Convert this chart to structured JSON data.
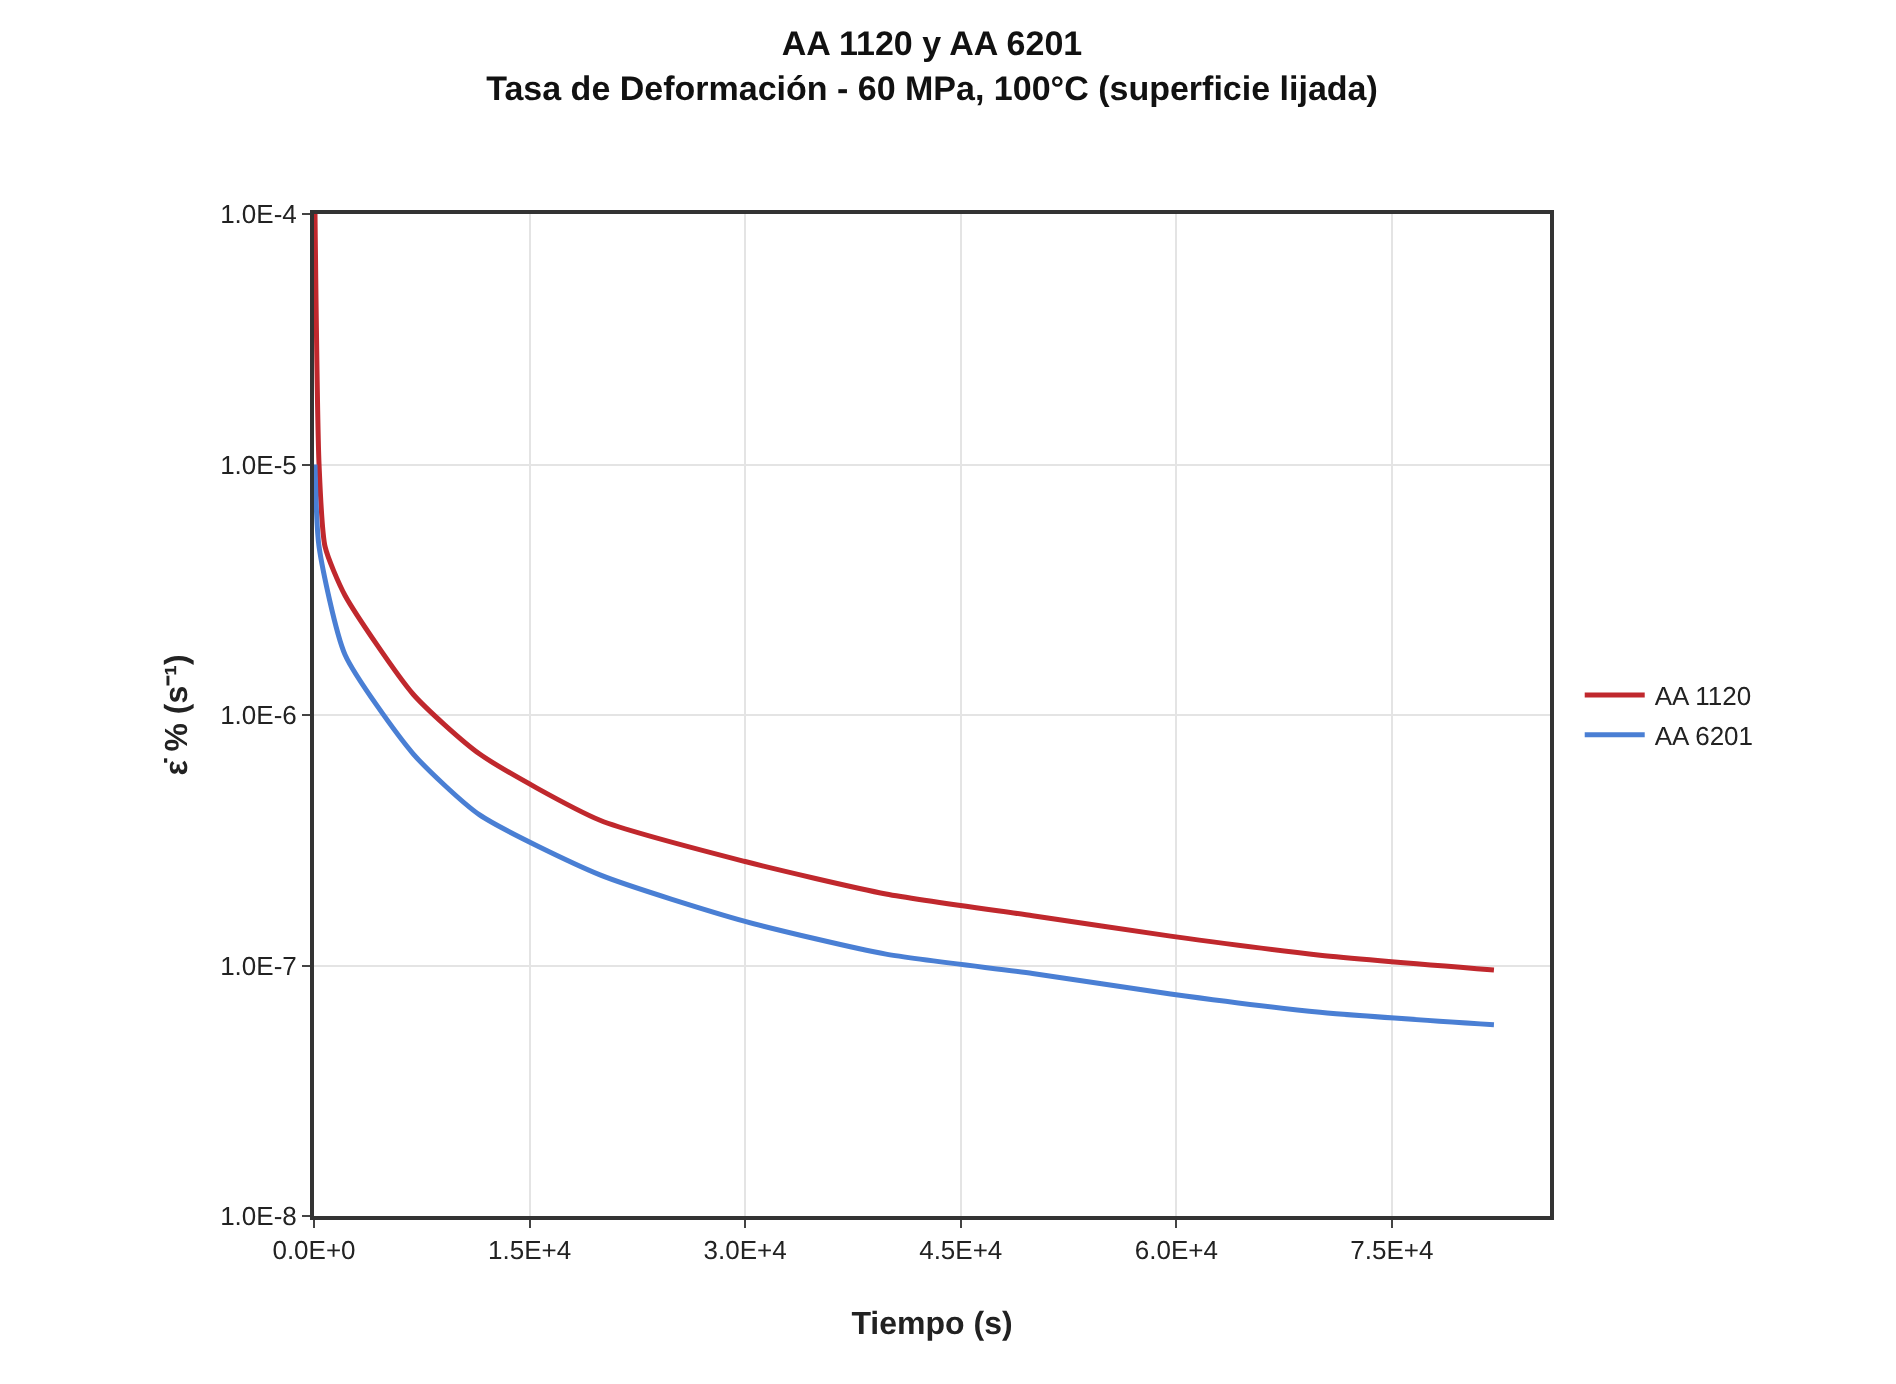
{
  "chart_data": {
    "type": "line",
    "title": "AA 1120 y AA 6201\nTasa de Deformación - 60 MPa, 100°C (superficie lijada)",
    "xlabel": "Tiempo (s)",
    "ylabel": "ε̇ % (s⁻¹)",
    "log": "y",
    "grid": true,
    "legend": "right",
    "marker": "none",
    "line_style": "solid",
    "xlim": [
      0,
      86000
    ],
    "xticks": [
      {
        "value": 0,
        "label": "0.0E+0"
      },
      {
        "value": 15000,
        "label": "1.5E+4"
      },
      {
        "value": 30000,
        "label": "3.0E+4"
      },
      {
        "value": 45000,
        "label": "4.5E+4"
      },
      {
        "value": 60000,
        "label": "6.0E+4"
      },
      {
        "value": 75000,
        "label": "7.5E+4"
      }
    ],
    "ylim": [
      1e-08,
      0.0001
    ],
    "yticks": [
      {
        "value": 1e-08,
        "label": "1.0E-8"
      },
      {
        "value": 1e-07,
        "label": "1.0E-7"
      },
      {
        "value": 1e-06,
        "label": "1.0E-6"
      },
      {
        "value": 1e-05,
        "label": "1.0E-5"
      },
      {
        "value": 0.0001,
        "label": "1.0E-4"
      }
    ],
    "series": [
      {
        "name": "AA 1120",
        "color": "#c0282d",
        "x": [
          70,
          350,
          770,
          2160,
          6900,
          11500,
          19900,
          30000,
          39800,
          50000,
          59600,
          70000,
          82100
        ],
        "values": [
          0.0001,
          1e-05,
          4.7e-06,
          3e-06,
          1.21e-06,
          7e-07,
          3.8e-07,
          2.6e-07,
          1.93e-07,
          1.58e-07,
          1.31e-07,
          1.1e-07,
          9.6e-08
        ]
      },
      {
        "name": "AA 6201",
        "color": "#4a7fd4",
        "x": [
          70,
          350,
          2160,
          6900,
          11500,
          19900,
          30000,
          39800,
          50000,
          59600,
          70000,
          82100
        ],
        "values": [
          1e-05,
          4.7e-06,
          1.74e-06,
          7e-07,
          4e-07,
          2.3e-07,
          1.5e-07,
          1.11e-07,
          9.3e-08,
          7.7e-08,
          6.5e-08,
          5.8e-08
        ]
      }
    ]
  }
}
